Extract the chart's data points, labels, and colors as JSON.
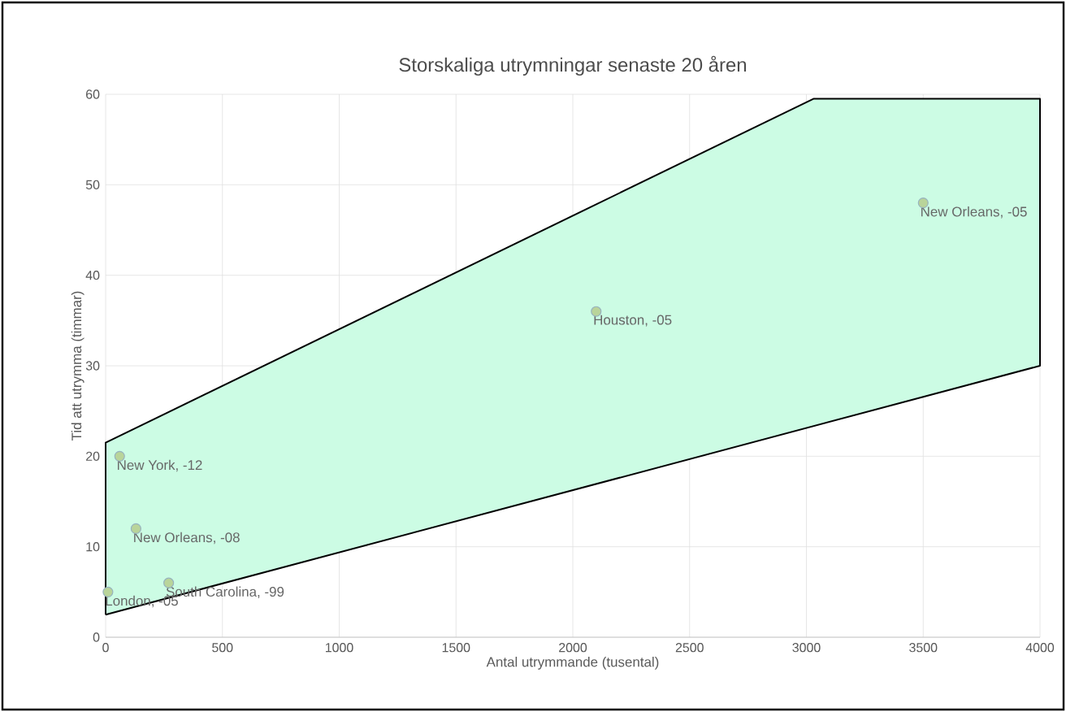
{
  "chart_data": {
    "type": "scatter",
    "title": "Storskaliga utrymningar senaste 20 åren",
    "xlabel": "Antal utrymmande (tusental)",
    "ylabel": "Tid att utrymma (timmar)",
    "xlim": [
      0,
      4000
    ],
    "ylim": [
      0,
      60
    ],
    "xticks": [
      0,
      500,
      1000,
      1500,
      2000,
      2500,
      3000,
      3500,
      4000
    ],
    "yticks": [
      0,
      10,
      20,
      30,
      40,
      50,
      60
    ],
    "grid": true,
    "marker": "circle",
    "series": [
      {
        "type": "area",
        "marker": "none",
        "color": "#ccfce4",
        "x": [
          0,
          0,
          3030,
          4000,
          4000,
          0
        ],
        "values": [
          2.5,
          21.5,
          59.5,
          59.5,
          30,
          2.5
        ]
      },
      {
        "color": "#b9d49a",
        "x": [
          10,
          60,
          130,
          270,
          2100,
          3500
        ],
        "values": [
          5,
          20,
          12,
          6,
          36,
          48
        ]
      }
    ],
    "annotations": [
      {
        "text": "London, -05",
        "x": 10,
        "y": 5
      },
      {
        "text": "New York, -12",
        "x": 60,
        "y": 20
      },
      {
        "text": "New Orleans, -08",
        "x": 130,
        "y": 12
      },
      {
        "text": "South Carolina, -99",
        "x": 270,
        "y": 6
      },
      {
        "text": "Houston, -05",
        "x": 2100,
        "y": 36
      },
      {
        "text": "New Orleans, -05",
        "x": 3500,
        "y": 48
      }
    ]
  }
}
